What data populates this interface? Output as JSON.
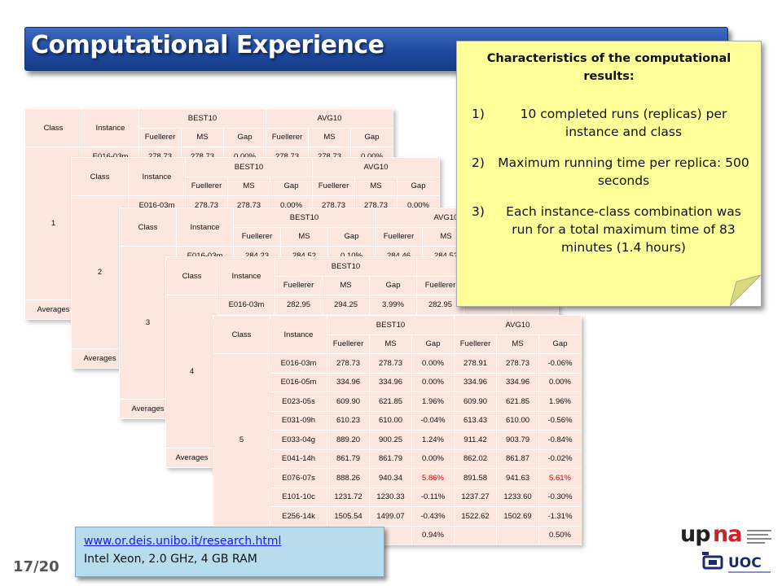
{
  "slide": {
    "title": "Computational Experience",
    "page": "17/20"
  },
  "note": {
    "title": "Characteristics of the computational results:",
    "items": [
      {
        "num": "1)",
        "text": "10 completed runs (replicas) per instance and class"
      },
      {
        "num": "2)",
        "text": "Maximum running time per replica: 500 seconds"
      },
      {
        "num": "3)",
        "text": "Each instance-class combination was run for a total maximum time of 83 minutes (1.4 hours)"
      }
    ]
  },
  "link_box": {
    "url": "www.or.deis.unibo.it/research.html",
    "spec": "Intel Xeon, 2.0 GHz, 4 GB RAM"
  },
  "table_header": {
    "class": "Class",
    "instance": "Instance",
    "best10": "BEST10",
    "avg10": "AVG10",
    "fuellerer": "Fuellerer",
    "ms": "MS",
    "gap": "Gap",
    "averages": "Averages"
  },
  "tables": [
    {
      "class_label": "1",
      "row": [
        "E016-03m",
        "278.73",
        "278.73",
        "0.00%",
        "278.73",
        "278.73",
        "0.00%"
      ]
    },
    {
      "class_label": "2",
      "row": [
        "E016-03m",
        "278.73",
        "278.73",
        "0.00%",
        "278.73",
        "278.73",
        "0.00%"
      ]
    },
    {
      "class_label": "3",
      "row": [
        "E016-03m",
        "284.23",
        "284.52",
        "0.10%",
        "284.46",
        "284.52",
        ""
      ]
    },
    {
      "class_label": "4",
      "row": [
        "E016-03m",
        "282.95",
        "294.25",
        "3.99%",
        "282.95",
        "",
        ""
      ]
    }
  ],
  "table5": {
    "class_label": "5",
    "rows": [
      [
        "E016-03m",
        "278.73",
        "278.73",
        "0.00%",
        "278.91",
        "278.73",
        "-0.06%"
      ],
      [
        "E016-05m",
        "334.96",
        "334.96",
        "0.00%",
        "334.96",
        "334.96",
        "0.00%"
      ],
      [
        "E023-05s",
        "609.90",
        "621.85",
        "1.96%",
        "609.90",
        "621.85",
        "1.96%"
      ],
      [
        "E031-09h",
        "610.23",
        "610.00",
        "-0.04%",
        "613.43",
        "610.00",
        "-0.56%"
      ],
      [
        "E033-04g",
        "889.20",
        "900.25",
        "1.24%",
        "911.42",
        "903.79",
        "-0.84%"
      ],
      [
        "E041-14h",
        "861.79",
        "861.79",
        "0.00%",
        "862.02",
        "861.87",
        "-0.02%"
      ],
      [
        "E076-07s",
        "888.26",
        "940.34",
        "5.86%",
        "891.58",
        "941.63",
        "5.61%"
      ],
      [
        "E101-10c",
        "1231.72",
        "1230.33",
        "-0.11%",
        "1237.27",
        "1233.60",
        "-0.30%"
      ],
      [
        "E256-14k",
        "1505.54",
        "1499.07",
        "-0.43%",
        "1522.62",
        "1502.69",
        "-1.31%"
      ]
    ],
    "averages": [
      "0.94%",
      "0.50%"
    ]
  },
  "logos": {
    "upna_up": "up",
    "upna_na": "na",
    "uoc": "UOC"
  },
  "colors": {
    "title_bar": "#1f4aa0",
    "table_fill": "#fce6dd",
    "note_fill": "#ffff99",
    "link_fill": "#b7dcee",
    "highlight": "#e00000"
  }
}
